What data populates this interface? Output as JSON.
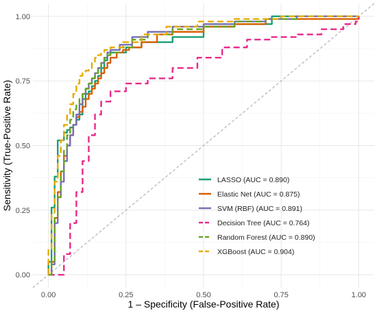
{
  "chart_data": {
    "type": "line",
    "title": "",
    "xlabel": "1 – Specificity (False-Positive Rate)",
    "ylabel": "Sensitivity (True-Positive Rate)",
    "xlim": [
      -0.05,
      1.05
    ],
    "ylim": [
      -0.05,
      1.05
    ],
    "x_ticks": [
      "0.00",
      "0.25",
      "0.50",
      "0.75",
      "1.00"
    ],
    "y_ticks": [
      "0.00",
      "0.25",
      "0.50",
      "0.75",
      "1.00"
    ],
    "grid": true,
    "legend_position": "bottom-right",
    "reference_line": {
      "from": [
        0,
        0
      ],
      "to": [
        1,
        1
      ],
      "color": "#a6a6a6",
      "style": "dashed"
    },
    "series": [
      {
        "name": "LASSO (AUC = 0.890)",
        "color": "#1b9e77",
        "dash": "solid",
        "points": [
          [
            0,
            0
          ],
          [
            0.0,
            0.05
          ],
          [
            0.01,
            0.05
          ],
          [
            0.01,
            0.2
          ],
          [
            0.01,
            0.26
          ],
          [
            0.02,
            0.3
          ],
          [
            0.02,
            0.38
          ],
          [
            0.03,
            0.38
          ],
          [
            0.03,
            0.42
          ],
          [
            0.03,
            0.52
          ],
          [
            0.04,
            0.52
          ],
          [
            0.05,
            0.55
          ],
          [
            0.06,
            0.56
          ],
          [
            0.07,
            0.57
          ],
          [
            0.08,
            0.58
          ],
          [
            0.09,
            0.6
          ],
          [
            0.1,
            0.62
          ],
          [
            0.11,
            0.68
          ],
          [
            0.12,
            0.7
          ],
          [
            0.13,
            0.71
          ],
          [
            0.14,
            0.73
          ],
          [
            0.15,
            0.75
          ],
          [
            0.16,
            0.77
          ],
          [
            0.17,
            0.8
          ],
          [
            0.18,
            0.83
          ],
          [
            0.19,
            0.85
          ],
          [
            0.2,
            0.86
          ],
          [
            0.25,
            0.88
          ],
          [
            0.3,
            0.9
          ],
          [
            0.4,
            0.92
          ],
          [
            0.5,
            0.96
          ],
          [
            0.6,
            0.97
          ],
          [
            0.72,
            1.0
          ],
          [
            1.0,
            1.0
          ]
        ]
      },
      {
        "name": "Elastic Net (AUC = 0.875)",
        "color": "#d95f02",
        "dash": "solid",
        "points": [
          [
            0,
            0
          ],
          [
            0.01,
            0.05
          ],
          [
            0.02,
            0.22
          ],
          [
            0.03,
            0.32
          ],
          [
            0.04,
            0.4
          ],
          [
            0.05,
            0.46
          ],
          [
            0.06,
            0.5
          ],
          [
            0.07,
            0.54
          ],
          [
            0.08,
            0.58
          ],
          [
            0.09,
            0.61
          ],
          [
            0.1,
            0.63
          ],
          [
            0.11,
            0.65
          ],
          [
            0.12,
            0.68
          ],
          [
            0.13,
            0.7
          ],
          [
            0.14,
            0.72
          ],
          [
            0.15,
            0.74
          ],
          [
            0.16,
            0.76
          ],
          [
            0.17,
            0.78
          ],
          [
            0.18,
            0.8
          ],
          [
            0.19,
            0.82
          ],
          [
            0.2,
            0.84
          ],
          [
            0.22,
            0.86
          ],
          [
            0.24,
            0.87
          ],
          [
            0.26,
            0.88
          ],
          [
            0.3,
            0.9
          ],
          [
            0.35,
            0.93
          ],
          [
            0.4,
            0.94
          ],
          [
            0.5,
            0.96
          ],
          [
            0.6,
            0.97
          ],
          [
            0.7,
            0.99
          ],
          [
            1.0,
            1.0
          ]
        ]
      },
      {
        "name": "SVM (RBF) (AUC = 0.891)",
        "color": "#7570b3",
        "dash": "solid",
        "points": [
          [
            0,
            0
          ],
          [
            0.01,
            0.04
          ],
          [
            0.02,
            0.2
          ],
          [
            0.03,
            0.3
          ],
          [
            0.04,
            0.36
          ],
          [
            0.05,
            0.44
          ],
          [
            0.06,
            0.5
          ],
          [
            0.07,
            0.54
          ],
          [
            0.08,
            0.58
          ],
          [
            0.09,
            0.62
          ],
          [
            0.1,
            0.66
          ],
          [
            0.11,
            0.7
          ],
          [
            0.12,
            0.72
          ],
          [
            0.13,
            0.74
          ],
          [
            0.14,
            0.76
          ],
          [
            0.15,
            0.78
          ],
          [
            0.16,
            0.8
          ],
          [
            0.17,
            0.82
          ],
          [
            0.18,
            0.84
          ],
          [
            0.19,
            0.86
          ],
          [
            0.2,
            0.87
          ],
          [
            0.23,
            0.89
          ],
          [
            0.27,
            0.92
          ],
          [
            0.32,
            0.94
          ],
          [
            0.4,
            0.96
          ],
          [
            0.5,
            0.97
          ],
          [
            0.6,
            0.98
          ],
          [
            0.7,
            0.99
          ],
          [
            0.8,
            1.0
          ],
          [
            1.0,
            1.0
          ]
        ]
      },
      {
        "name": "Decision Tree (AUC = 0.764)",
        "color": "#e7298a",
        "dash": "dashed",
        "points": [
          [
            0,
            0
          ],
          [
            0.01,
            0.0
          ],
          [
            0.03,
            0.0
          ],
          [
            0.05,
            0.08
          ],
          [
            0.07,
            0.2
          ],
          [
            0.09,
            0.32
          ],
          [
            0.11,
            0.44
          ],
          [
            0.13,
            0.54
          ],
          [
            0.15,
            0.62
          ],
          [
            0.17,
            0.67
          ],
          [
            0.2,
            0.71
          ],
          [
            0.25,
            0.74
          ],
          [
            0.32,
            0.76
          ],
          [
            0.4,
            0.8
          ],
          [
            0.48,
            0.84
          ],
          [
            0.56,
            0.88
          ],
          [
            0.64,
            0.91
          ],
          [
            0.72,
            0.92
          ],
          [
            0.8,
            0.93
          ],
          [
            0.88,
            0.95
          ],
          [
            0.95,
            0.97
          ],
          [
            0.99,
            0.98
          ],
          [
            1.0,
            1.0
          ]
        ]
      },
      {
        "name": "Random Forest (AUC = 0.890)",
        "color": "#66a61e",
        "dash": "dashed",
        "points": [
          [
            0,
            0
          ],
          [
            0.01,
            0.05
          ],
          [
            0.02,
            0.22
          ],
          [
            0.03,
            0.3
          ],
          [
            0.04,
            0.4
          ],
          [
            0.05,
            0.48
          ],
          [
            0.06,
            0.54
          ],
          [
            0.07,
            0.6
          ],
          [
            0.08,
            0.64
          ],
          [
            0.09,
            0.66
          ],
          [
            0.1,
            0.68
          ],
          [
            0.11,
            0.7
          ],
          [
            0.12,
            0.72
          ],
          [
            0.13,
            0.74
          ],
          [
            0.14,
            0.76
          ],
          [
            0.15,
            0.78
          ],
          [
            0.16,
            0.8
          ],
          [
            0.17,
            0.82
          ],
          [
            0.18,
            0.84
          ],
          [
            0.19,
            0.85
          ],
          [
            0.2,
            0.86
          ],
          [
            0.23,
            0.88
          ],
          [
            0.27,
            0.91
          ],
          [
            0.32,
            0.93
          ],
          [
            0.4,
            0.95
          ],
          [
            0.5,
            0.96
          ],
          [
            0.6,
            0.98
          ],
          [
            0.7,
            0.99
          ],
          [
            0.8,
            1.0
          ],
          [
            1.0,
            1.0
          ]
        ]
      },
      {
        "name": "XGBoost (AUC = 0.904)",
        "color": "#e6ab02",
        "dash": "dashed",
        "points": [
          [
            0,
            0
          ],
          [
            0.0,
            0.1
          ],
          [
            0.01,
            0.24
          ],
          [
            0.02,
            0.36
          ],
          [
            0.03,
            0.46
          ],
          [
            0.04,
            0.52
          ],
          [
            0.05,
            0.58
          ],
          [
            0.06,
            0.62
          ],
          [
            0.07,
            0.66
          ],
          [
            0.08,
            0.7
          ],
          [
            0.09,
            0.74
          ],
          [
            0.1,
            0.77
          ],
          [
            0.11,
            0.78
          ],
          [
            0.12,
            0.79
          ],
          [
            0.13,
            0.8
          ],
          [
            0.14,
            0.82
          ],
          [
            0.15,
            0.84
          ],
          [
            0.16,
            0.85
          ],
          [
            0.17,
            0.86
          ],
          [
            0.18,
            0.87
          ],
          [
            0.2,
            0.88
          ],
          [
            0.24,
            0.9
          ],
          [
            0.3,
            0.93
          ],
          [
            0.38,
            0.96
          ],
          [
            0.48,
            0.98
          ],
          [
            0.6,
            0.99
          ],
          [
            0.75,
            1.0
          ],
          [
            1.0,
            1.0
          ]
        ]
      }
    ]
  }
}
